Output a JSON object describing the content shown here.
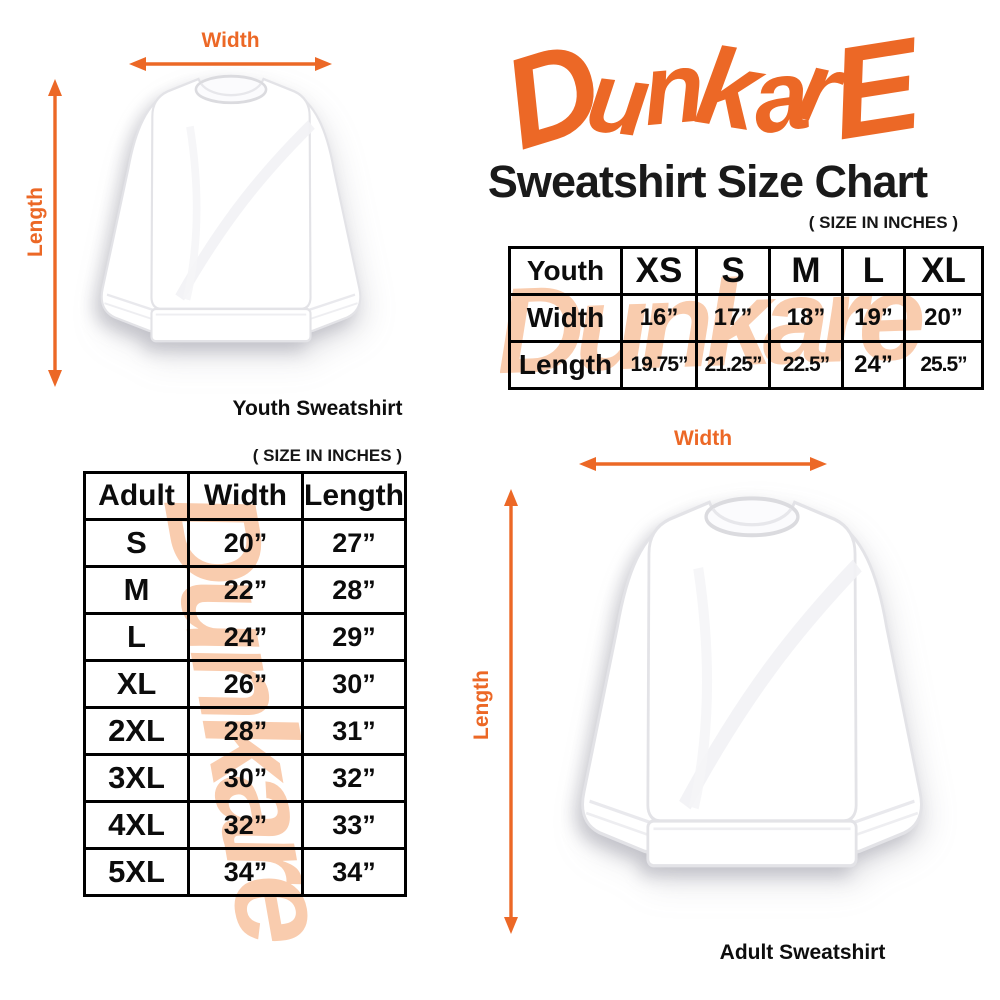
{
  "brand": {
    "logo_text": "DunkarE",
    "watermark_text": "Dunkare",
    "orange": "#EC6826",
    "watermark_color": "#F9CCAE"
  },
  "header": {
    "title": "Sweatshirt Size Chart",
    "size_note": "( SIZE IN INCHES )"
  },
  "youth_figure": {
    "width_label": "Width",
    "length_label": "Length",
    "caption": "Youth Sweatshirt"
  },
  "adult_section": {
    "size_note": "( SIZE IN INCHES )"
  },
  "adult_figure": {
    "width_label": "Width",
    "length_label": "Length",
    "caption": "Adult Sweatshirt"
  },
  "youth_table": {
    "columns": [
      "Youth",
      "XS",
      "S",
      "M",
      "L",
      "XL"
    ],
    "rows": [
      [
        "Width",
        "16”",
        "17”",
        "18”",
        "19”",
        "20”"
      ],
      [
        "Length",
        "19.75”",
        "21.25”",
        "22.5”",
        "24”",
        "25.5”"
      ]
    ]
  },
  "adult_table": {
    "columns": [
      "Adult",
      "Width",
      "Length"
    ],
    "rows": [
      [
        "S",
        "20”",
        "27”"
      ],
      [
        "M",
        "22”",
        "28”"
      ],
      [
        "L",
        "24”",
        "29”"
      ],
      [
        "XL",
        "26”",
        "30”"
      ],
      [
        "2XL",
        "28”",
        "31”"
      ],
      [
        "3XL",
        "30”",
        "32”"
      ],
      [
        "4XL",
        "32”",
        "33”"
      ],
      [
        "5XL",
        "34”",
        "34”"
      ]
    ]
  },
  "chart_data": [
    {
      "type": "table",
      "title": "Youth Sweatshirt Size Chart ( SIZE IN INCHES )",
      "columns": [
        "Youth",
        "XS",
        "S",
        "M",
        "L",
        "XL"
      ],
      "rows": [
        [
          "Width",
          16,
          17,
          18,
          19,
          20
        ],
        [
          "Length",
          19.75,
          21.25,
          22.5,
          24,
          25.5
        ]
      ]
    },
    {
      "type": "table",
      "title": "Adult Sweatshirt Size Chart ( SIZE IN INCHES )",
      "columns": [
        "Adult",
        "Width",
        "Length"
      ],
      "rows": [
        [
          "S",
          20,
          27
        ],
        [
          "M",
          22,
          28
        ],
        [
          "L",
          24,
          29
        ],
        [
          "XL",
          26,
          30
        ],
        [
          "2XL",
          28,
          31
        ],
        [
          "3XL",
          30,
          32
        ],
        [
          "4XL",
          32,
          33
        ],
        [
          "5XL",
          34,
          34
        ]
      ]
    }
  ]
}
